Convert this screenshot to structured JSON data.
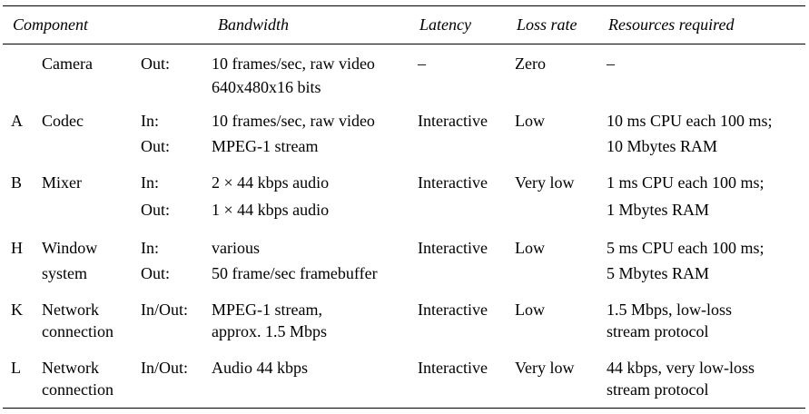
{
  "headers": {
    "component": "Component",
    "bandwidth": "Bandwidth",
    "latency": "Latency",
    "loss_rate": "Loss rate",
    "resources": "Resources required"
  },
  "rows": [
    {
      "id": "",
      "component": [
        "Camera"
      ],
      "direction": [
        "Out:"
      ],
      "bandwidth": [
        "10 frames/sec, raw video",
        "640x480x16 bits"
      ],
      "latency": "–",
      "loss_rate": "Zero",
      "resources": [
        "–"
      ]
    },
    {
      "id": "A",
      "component": [
        "Codec"
      ],
      "direction": [
        "In:",
        "Out:"
      ],
      "bandwidth": [
        "10 frames/sec, raw video",
        "MPEG-1 stream"
      ],
      "latency": "Interactive",
      "loss_rate": "Low",
      "resources": [
        "10 ms CPU each 100 ms;",
        "10 Mbytes RAM"
      ]
    },
    {
      "id": "B",
      "component": [
        "Mixer"
      ],
      "direction": [
        "In:",
        "Out:"
      ],
      "bandwidth": [
        "2 × 44 kbps audio",
        "1 × 44 kbps audio"
      ],
      "latency": "Interactive",
      "loss_rate": "Very low",
      "resources": [
        "1 ms CPU each 100 ms;",
        "1 Mbytes RAM"
      ]
    },
    {
      "id": "H",
      "component": [
        "Window",
        "system"
      ],
      "direction": [
        "In:",
        "Out:"
      ],
      "bandwidth": [
        "various",
        "50 frame/sec framebuffer"
      ],
      "latency": "Interactive",
      "loss_rate": "Low",
      "resources": [
        "5 ms CPU each 100 ms;",
        "5 Mbytes RAM"
      ]
    },
    {
      "id": "K",
      "component": [
        "Network",
        "connection"
      ],
      "direction": [
        "In/Out:"
      ],
      "bandwidth": [
        "MPEG-1 stream,",
        "approx. 1.5 Mbps"
      ],
      "latency": "Interactive",
      "loss_rate": "Low",
      "resources": [
        "1.5 Mbps, low-loss",
        "stream protocol"
      ]
    },
    {
      "id": "L",
      "component": [
        "Network",
        "connection"
      ],
      "direction": [
        "In/Out:"
      ],
      "bandwidth": [
        "Audio 44 kbps"
      ],
      "latency": "Interactive",
      "loss_rate": "Very low",
      "resources": [
        "44 kbps, very low-loss",
        "stream protocol"
      ]
    }
  ]
}
